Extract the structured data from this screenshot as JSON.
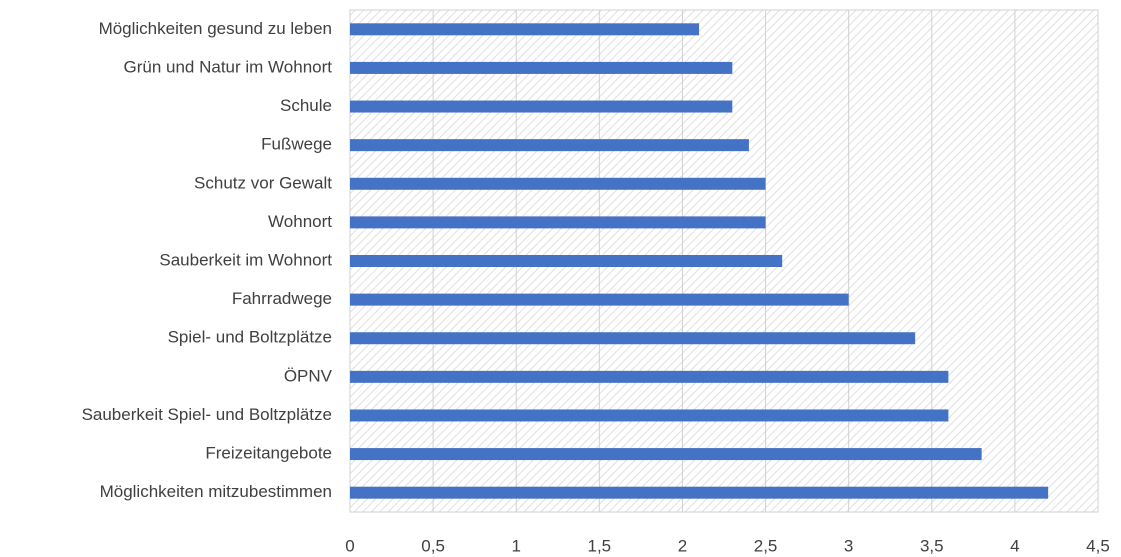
{
  "chart_data": {
    "type": "bar",
    "orientation": "horizontal",
    "categories": [
      "Möglichkeiten gesund zu leben",
      "Grün und Natur im Wohnort",
      "Schule",
      "Fußwege",
      "Schutz vor Gewalt",
      "Wohnort",
      "Sauberkeit im Wohnort",
      "Fahrradwege",
      "Spiel- und Boltzplätze",
      "ÖPNV",
      "Sauberkeit Spiel- und Boltzplätze",
      "Freizeitangebote",
      "Möglichkeiten mitzubestimmen"
    ],
    "values": [
      2.1,
      2.3,
      2.3,
      2.4,
      2.5,
      2.5,
      2.6,
      3.0,
      3.4,
      3.6,
      3.6,
      3.8,
      4.2
    ],
    "color": "#4472c4",
    "xlim": [
      0,
      4.5
    ],
    "xticks": [
      0,
      {
        "value": 0.5,
        "label": "0,5"
      },
      1,
      {
        "value": 1.5,
        "label": "1,5"
      },
      2,
      {
        "value": 2.5,
        "label": "2,5"
      },
      3,
      {
        "value": 3.5,
        "label": "3,5"
      },
      4,
      {
        "value": 4.5,
        "label": "4,5"
      }
    ],
    "grid": true
  }
}
